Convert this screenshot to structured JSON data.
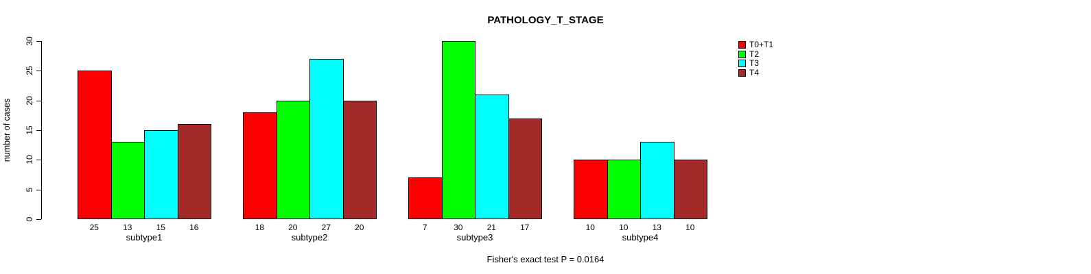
{
  "title": "PATHOLOGY_T_STAGE",
  "caption": "Fisher's exact test P = 0.0164",
  "chart_data": {
    "type": "bar",
    "title": "PATHOLOGY_T_STAGE",
    "xlabel": "",
    "ylabel": "number of cases",
    "ylim": [
      0,
      30
    ],
    "yticks": [
      0,
      5,
      10,
      15,
      20,
      25,
      30
    ],
    "grid": false,
    "legend_position": "top-right",
    "categories": [
      "subtype1",
      "subtype2",
      "subtype3",
      "subtype4"
    ],
    "series": [
      {
        "name": "T0+T1",
        "color": "#ff0000",
        "values": [
          25,
          18,
          7,
          10
        ]
      },
      {
        "name": "T2",
        "color": "#00ff00",
        "values": [
          13,
          20,
          30,
          10
        ]
      },
      {
        "name": "T3",
        "color": "#00ffff",
        "values": [
          15,
          27,
          21,
          13
        ]
      },
      {
        "name": "T4",
        "color": "#a52a2a",
        "values": [
          16,
          20,
          17,
          10
        ]
      }
    ],
    "bar_value_labels": [
      [
        25,
        13,
        15,
        16
      ],
      [
        18,
        20,
        27,
        20
      ],
      [
        7,
        30,
        21,
        17
      ],
      [
        10,
        10,
        13,
        10
      ]
    ],
    "annotation": "Fisher's exact test P = 0.0164"
  }
}
